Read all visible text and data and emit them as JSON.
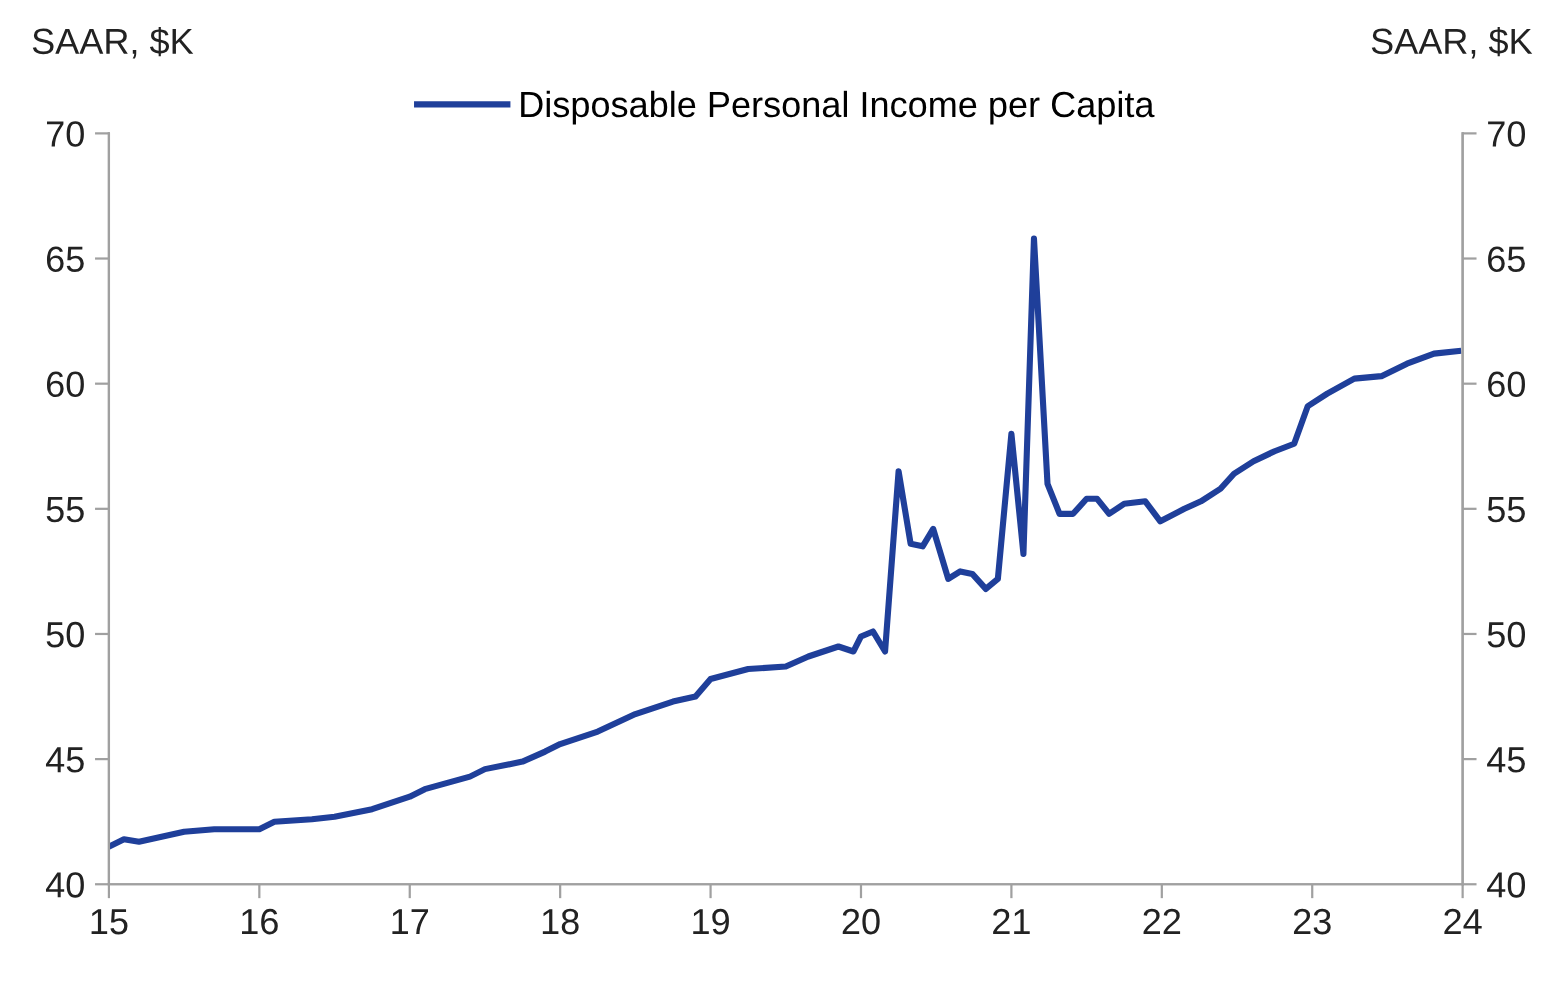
{
  "chart_data": {
    "type": "line",
    "ylabel": "SAAR, $K",
    "y2label": "SAAR, $K",
    "xlim": [
      15,
      24
    ],
    "xticks": [
      15,
      16,
      17,
      18,
      19,
      20,
      21,
      22,
      23,
      24
    ],
    "ylim": [
      40,
      70
    ],
    "yticks": [
      40,
      45,
      50,
      55,
      60,
      65,
      70
    ],
    "y2lim": [
      40,
      70
    ],
    "y2ticks": [
      40,
      45,
      50,
      55,
      60,
      65,
      70
    ],
    "legend": "top",
    "grid": false,
    "marker": "none",
    "line_style": "solid",
    "series": [
      {
        "name": "Disposable Personal Income per Capita",
        "color": "#1f3f9a",
        "x": [
          15.0,
          15.1,
          15.2,
          15.35,
          15.5,
          15.7,
          16.0,
          16.1,
          16.35,
          16.5,
          16.75,
          17.0,
          17.1,
          17.4,
          17.5,
          17.75,
          17.9,
          18.0,
          18.25,
          18.5,
          18.75,
          18.9,
          19.0,
          19.25,
          19.5,
          19.65,
          19.85,
          19.95,
          20.0,
          20.08,
          20.16,
          20.25,
          20.33,
          20.41,
          20.48,
          20.58,
          20.66,
          20.74,
          20.83,
          20.91,
          21.0,
          21.08,
          21.15,
          21.24,
          21.32,
          21.41,
          21.5,
          21.57,
          21.65,
          21.75,
          21.89,
          21.99,
          22.15,
          22.26,
          22.39,
          22.48,
          22.61,
          22.75,
          22.88,
          22.97,
          23.1,
          23.28,
          23.46,
          23.63,
          23.81,
          23.97
        ],
        "values": [
          41.5,
          41.8,
          41.7,
          41.9,
          42.1,
          42.2,
          42.2,
          42.5,
          42.6,
          42.7,
          43.0,
          43.5,
          43.8,
          44.3,
          44.6,
          44.9,
          45.3,
          45.6,
          46.1,
          46.8,
          47.3,
          47.5,
          48.2,
          48.6,
          48.7,
          49.1,
          49.5,
          49.3,
          49.9,
          50.1,
          49.3,
          56.5,
          53.6,
          53.5,
          54.2,
          52.2,
          52.5,
          52.4,
          51.8,
          52.2,
          58.0,
          53.2,
          65.8,
          56.0,
          54.8,
          54.8,
          55.4,
          55.4,
          54.8,
          55.2,
          55.3,
          54.5,
          55.0,
          55.3,
          55.8,
          56.4,
          56.9,
          57.3,
          57.6,
          59.1,
          59.6,
          60.2,
          60.3,
          60.8,
          61.2,
          61.3
        ]
      }
    ]
  }
}
